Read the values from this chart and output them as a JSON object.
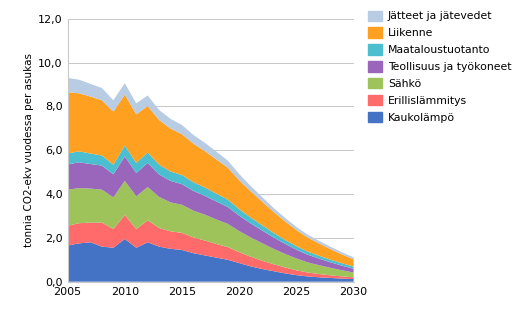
{
  "years": [
    2005,
    2006,
    2007,
    2008,
    2009,
    2010,
    2011,
    2012,
    2013,
    2014,
    2015,
    2016,
    2017,
    2018,
    2019,
    2020,
    2021,
    2022,
    2023,
    2024,
    2025,
    2026,
    2027,
    2028,
    2029,
    2030
  ],
  "series": {
    "Kaukolämpö": [
      1.65,
      1.75,
      1.8,
      1.6,
      1.55,
      1.95,
      1.55,
      1.8,
      1.6,
      1.5,
      1.45,
      1.3,
      1.2,
      1.1,
      1.0,
      0.85,
      0.7,
      0.58,
      0.48,
      0.38,
      0.3,
      0.24,
      0.2,
      0.17,
      0.14,
      0.12
    ],
    "Erillislämmitys": [
      0.9,
      0.92,
      0.9,
      1.1,
      0.85,
      1.1,
      0.85,
      1.0,
      0.85,
      0.8,
      0.78,
      0.72,
      0.68,
      0.62,
      0.58,
      0.5,
      0.44,
      0.38,
      0.32,
      0.27,
      0.22,
      0.18,
      0.15,
      0.12,
      0.1,
      0.08
    ],
    "Sähkö": [
      1.65,
      1.6,
      1.55,
      1.5,
      1.45,
      1.55,
      1.5,
      1.52,
      1.42,
      1.32,
      1.28,
      1.22,
      1.18,
      1.12,
      1.06,
      0.96,
      0.88,
      0.8,
      0.7,
      0.62,
      0.54,
      0.46,
      0.4,
      0.34,
      0.28,
      0.22
    ],
    "Teollisuus ja työkoneet": [
      1.15,
      1.18,
      1.12,
      1.1,
      1.05,
      1.12,
      1.06,
      1.1,
      1.02,
      0.98,
      0.94,
      0.9,
      0.86,
      0.82,
      0.77,
      0.7,
      0.64,
      0.58,
      0.52,
      0.46,
      0.4,
      0.35,
      0.3,
      0.25,
      0.21,
      0.17
    ],
    "Maataloustuotanto": [
      0.5,
      0.5,
      0.48,
      0.46,
      0.44,
      0.5,
      0.46,
      0.48,
      0.45,
      0.43,
      0.42,
      0.4,
      0.38,
      0.36,
      0.34,
      0.3,
      0.27,
      0.24,
      0.21,
      0.18,
      0.16,
      0.14,
      0.13,
      0.12,
      0.11,
      0.1
    ],
    "Liikenne": [
      2.8,
      2.65,
      2.6,
      2.52,
      2.42,
      2.32,
      2.22,
      2.12,
      2.04,
      1.96,
      1.86,
      1.76,
      1.66,
      1.56,
      1.46,
      1.32,
      1.2,
      1.08,
      0.96,
      0.85,
      0.74,
      0.64,
      0.56,
      0.48,
      0.4,
      0.33
    ],
    "Jätteet ja jätevedet": [
      0.65,
      0.62,
      0.58,
      0.56,
      0.52,
      0.52,
      0.5,
      0.48,
      0.46,
      0.44,
      0.42,
      0.4,
      0.38,
      0.36,
      0.32,
      0.28,
      0.24,
      0.21,
      0.18,
      0.16,
      0.14,
      0.13,
      0.12,
      0.11,
      0.1,
      0.09
    ]
  },
  "colors": {
    "Kaukolämpö": "#4472C4",
    "Erillislämmitys": "#FF6B6B",
    "Sähkö": "#9DC35A",
    "Teollisuus ja työkoneet": "#9966BB",
    "Maataloustuotanto": "#4BBFCF",
    "Liikenne": "#FFA020",
    "Jätteet ja jätevedet": "#B8CCE4"
  },
  "ylabel": "tonnia CO2-ekv vuodessa per asukas",
  "ylim": [
    0,
    12
  ],
  "yticks": [
    0.0,
    2.0,
    4.0,
    6.0,
    8.0,
    10.0,
    12.0
  ],
  "xlim": [
    2005,
    2030
  ],
  "xticks": [
    2005,
    2010,
    2015,
    2020,
    2025,
    2030
  ],
  "legend_order": [
    "Jätteet ja jätevedet",
    "Liikenne",
    "Maataloustuotanto",
    "Teollisuus ja työkoneet",
    "Sähkö",
    "Erillislämmitys",
    "Kaukolämpö"
  ],
  "background_color": "#FFFFFF",
  "grid_color": "#C8C8C8"
}
